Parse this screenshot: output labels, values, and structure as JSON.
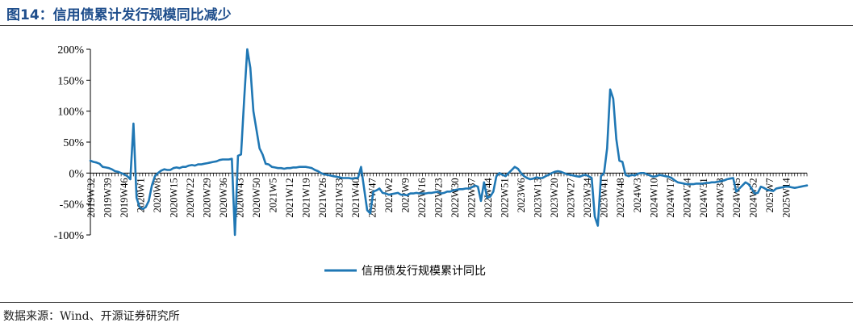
{
  "header": {
    "title": "图14：信用债累计发行规模同比减少"
  },
  "footer": {
    "source": "数据来源：Wind、开源证券研究所"
  },
  "colors": {
    "series": "#1f77b4",
    "title": "#1f4e8c"
  },
  "chart_data": {
    "type": "line",
    "title": "",
    "xlabel": "",
    "ylabel": "",
    "ylim": [
      -100,
      200
    ],
    "yticks": [
      -100,
      -50,
      0,
      50,
      100,
      150,
      200
    ],
    "ytick_format": "percent",
    "x_tick_labels": [
      "2019W32",
      "2019W39",
      "2019W46",
      "2020W1",
      "2020W8",
      "2020W15",
      "2020W22",
      "2020W29",
      "2020W36",
      "2020W43",
      "2020W50",
      "2021W5",
      "2021W12",
      "2021W19",
      "2021W26",
      "2021W33",
      "2021W40",
      "2021W47",
      "2022W2",
      "2022W9",
      "2022W16",
      "2022W23",
      "2022W30",
      "2022W37",
      "2022W44",
      "2022W51",
      "2023W6",
      "2023W13",
      "2023W20",
      "2023W27",
      "2023W34",
      "2023W41",
      "2023W48",
      "2024W3",
      "2024W10",
      "2024W17",
      "2024W24",
      "2024W31",
      "2024W38",
      "2024W45",
      "2024W52",
      "2025W7",
      "2025W14"
    ],
    "legend": "bottom-center",
    "grid": false,
    "series": [
      {
        "name": "信用债发行规模累计同比",
        "color": "#1f77b4",
        "x_start": "2019W32",
        "values": [
          20,
          18,
          17,
          15,
          10,
          9,
          8,
          6,
          3,
          2,
          0,
          -2,
          -5,
          -10,
          80,
          -40,
          -55,
          -58,
          -55,
          -45,
          -20,
          -5,
          0,
          4,
          6,
          5,
          5,
          8,
          9,
          8,
          10,
          10,
          12,
          13,
          12,
          14,
          14,
          15,
          16,
          17,
          18,
          19,
          21,
          22,
          22,
          22,
          23,
          -100,
          28,
          30,
          120,
          200,
          170,
          100,
          70,
          40,
          30,
          15,
          14,
          10,
          9,
          8,
          8,
          7,
          8,
          8,
          9,
          9,
          10,
          10,
          10,
          9,
          8,
          5,
          3,
          0,
          -2,
          -3,
          -4,
          -5,
          -6,
          -7,
          -8,
          -8,
          -8,
          -9,
          -8,
          -8,
          10,
          -25,
          -60,
          -65,
          -30,
          -28,
          -25,
          -32,
          -33,
          -35,
          -34,
          -33,
          -32,
          -35,
          -35,
          -36,
          -33,
          -33,
          -32,
          -33,
          -33,
          -33,
          -32,
          -32,
          -31,
          -30,
          -33,
          -32,
          -30,
          -30,
          -28,
          -27,
          -26,
          -26,
          -25,
          -25,
          -23,
          -20,
          -22,
          -45,
          -15,
          -40,
          -38,
          -30,
          -5,
          0,
          -3,
          -5,
          0,
          5,
          10,
          7,
          0,
          -5,
          -8,
          -10,
          -9,
          -7,
          -8,
          -8,
          -5,
          -3,
          0,
          2,
          3,
          2,
          0,
          -2,
          -3,
          -4,
          -5,
          -6,
          -4,
          -3,
          -5,
          -8,
          -70,
          -85,
          -5,
          0,
          40,
          135,
          120,
          55,
          20,
          18,
          -3,
          -5,
          -3,
          -4,
          -1,
          0,
          0,
          -2,
          -4,
          -6,
          -5,
          -3,
          -4,
          -5,
          -6,
          -8,
          -12,
          -15,
          -16,
          -17,
          -18,
          -18,
          -18,
          -17,
          -17,
          -17,
          -16,
          -16,
          -15,
          -15,
          -14,
          -13,
          -12,
          -10,
          -9,
          -8,
          -30,
          -25,
          -20,
          -15,
          -18,
          -25,
          -33,
          -32,
          -22,
          -24,
          -27,
          -28,
          -29,
          -25,
          -24,
          -23,
          -22,
          -22,
          -23,
          -24,
          -23,
          -22,
          -21,
          -20
        ]
      }
    ]
  }
}
